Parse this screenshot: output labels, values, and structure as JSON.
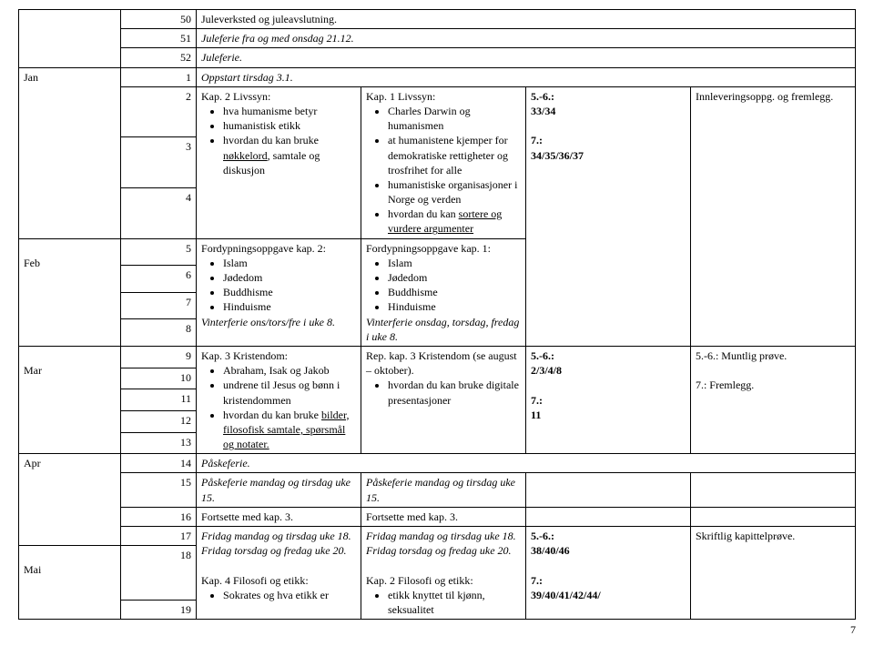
{
  "months": {
    "jan": "Jan",
    "feb": "Feb",
    "mar": "Mar",
    "apr": "Apr",
    "mai": "Mai"
  },
  "r50": {
    "week": "50",
    "text": "Juleverksted og juleavslutning."
  },
  "r51": {
    "week": "51",
    "text": "Juleferie fra og med onsdag 21.12."
  },
  "r52": {
    "week": "52",
    "text": "Juleferie."
  },
  "r1": {
    "week": "1",
    "text": "Oppstart tirsdag 3.1."
  },
  "r2to4": {
    "w2": "2",
    "w3": "3",
    "w4": "4",
    "kap2": "Kap. 2 Livssyn:",
    "bul1": "hva humanisme betyr",
    "bul2": "humanistisk etikk",
    "bul3a": "hvordan du kan bruke ",
    "bul3u": "nøkkelord",
    "bul3b": ", samtale og diskusjon",
    "kap1": "Kap. 1 Livssyn:",
    "kb1": "Charles Darwin og humanismen",
    "kb2": "at humanistene kjemper for demokratiske rettigheter og trosfrihet for alle",
    "kb3": "humanistiske organisasjoner i Norge og verden",
    "kb4a": "hvordan du kan ",
    "kb4u": "sortere og vurdere argumenter",
    "ref1": "5.-6.:",
    "ref2": "33/34",
    "ref3": "7.:",
    "ref4": "34/35/36/37",
    "note": "Innleveringsoppg. og fremlegg."
  },
  "r5to8": {
    "w5": "5",
    "w6": "6",
    "w7": "7",
    "w8": "8",
    "fk2": "Fordypningsoppgave kap. 2:",
    "b1": "Islam",
    "b2": "Jødedom",
    "b3": "Buddhisme",
    "b4": "Hinduisme",
    "vf1": "Vinterferie ons/tors/fre i uke 8.",
    "fk1": "Fordypningsoppgave kap. 1:",
    "vf2": "Vinterferie onsdag, torsdag, fredag i uke 8."
  },
  "r9to13": {
    "w9": "9",
    "w10": "10",
    "w11": "11",
    "w12": "12",
    "w13": "13",
    "kap3": "Kap. 3 Kristendom:",
    "b1": "Abraham, Isak og Jakob",
    "b2": "undrene til Jesus og bønn i kristendommen",
    "b3a": "hvordan du kan bruke ",
    "b3u": "bilder, filosofisk samtale, spørsmål og notater.",
    "rep": "Rep. kap. 3 Kristendom (se august – oktober).",
    "rb1": "hvordan du kan bruke digitale presentasjoner",
    "ref1": "5.-6.:",
    "ref2": "2/3/4/8",
    "ref3": "7.:",
    "ref4": "11",
    "note1": "5.-6.: Muntlig prøve.",
    "note2": "7.: Fremlegg."
  },
  "r14": {
    "w": "14",
    "text": "Påskeferie."
  },
  "r15": {
    "w": "15",
    "t1": "Påskeferie mandag og tirsdag uke 15.",
    "t2": "Påskeferie mandag og tirsdag uke 15."
  },
  "r16": {
    "w": "16",
    "t": "Fortsette med kap. 3."
  },
  "r17to19": {
    "w17": "17",
    "w18": "18",
    "w19": "19",
    "f1": "Fridag mandag og tirsdag uke 18.",
    "f2": "Fridag torsdag og fredag uke 20.",
    "kap4": "Kap. 4 Filosofi og etikk:",
    "kb1": "Sokrates og hva etikk er",
    "kap2e": "Kap. 2 Filosofi og etikk:",
    "kb2": "etikk knyttet til kjønn, seksualitet",
    "ref1": "5.-6.:",
    "ref2": "38/40/46",
    "ref3": "7.:",
    "ref4": "39/40/41/42/44/",
    "note": "Skriftlig kapittelprøve."
  },
  "pagenum": "7"
}
